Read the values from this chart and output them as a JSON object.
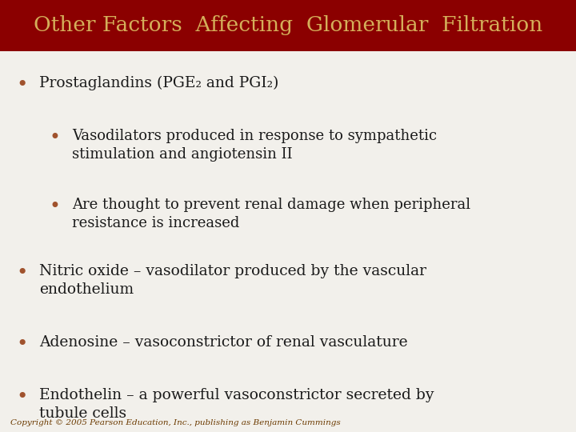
{
  "title": "Other Factors  Affecting  Glomerular  Filtration",
  "title_color": "#D4AF5A",
  "title_bg_color": "#8B0000",
  "body_bg_color": "#F2F0EB",
  "bullet_color": "#A0522D",
  "text_color": "#1A1A1A",
  "copyright_text": "Copyright © 2005 Pearson Education, Inc., publishing as Benjamin Cummings",
  "copyright_color": "#6B3A00",
  "bullet1": "Prostaglandins (PGE₂ and PGI₂)",
  "sub_bullet1": "Vasodilators produced in response to sympathetic\nstimulation and angiotensin II",
  "sub_bullet2": "Are thought to prevent renal damage when peripheral\nresistance is increased",
  "bullet2": "Nitric oxide – vasodilator produced by the vascular\nendothelium",
  "bullet3": "Adenosine – vasoconstrictor of renal vasculature",
  "bullet4": "Endothelin – a powerful vasoconstrictor secreted by\ntubule cells",
  "title_fontsize": 19,
  "body_fontsize": 13.5,
  "sub_fontsize": 13.0,
  "copyright_fontsize": 7.5
}
